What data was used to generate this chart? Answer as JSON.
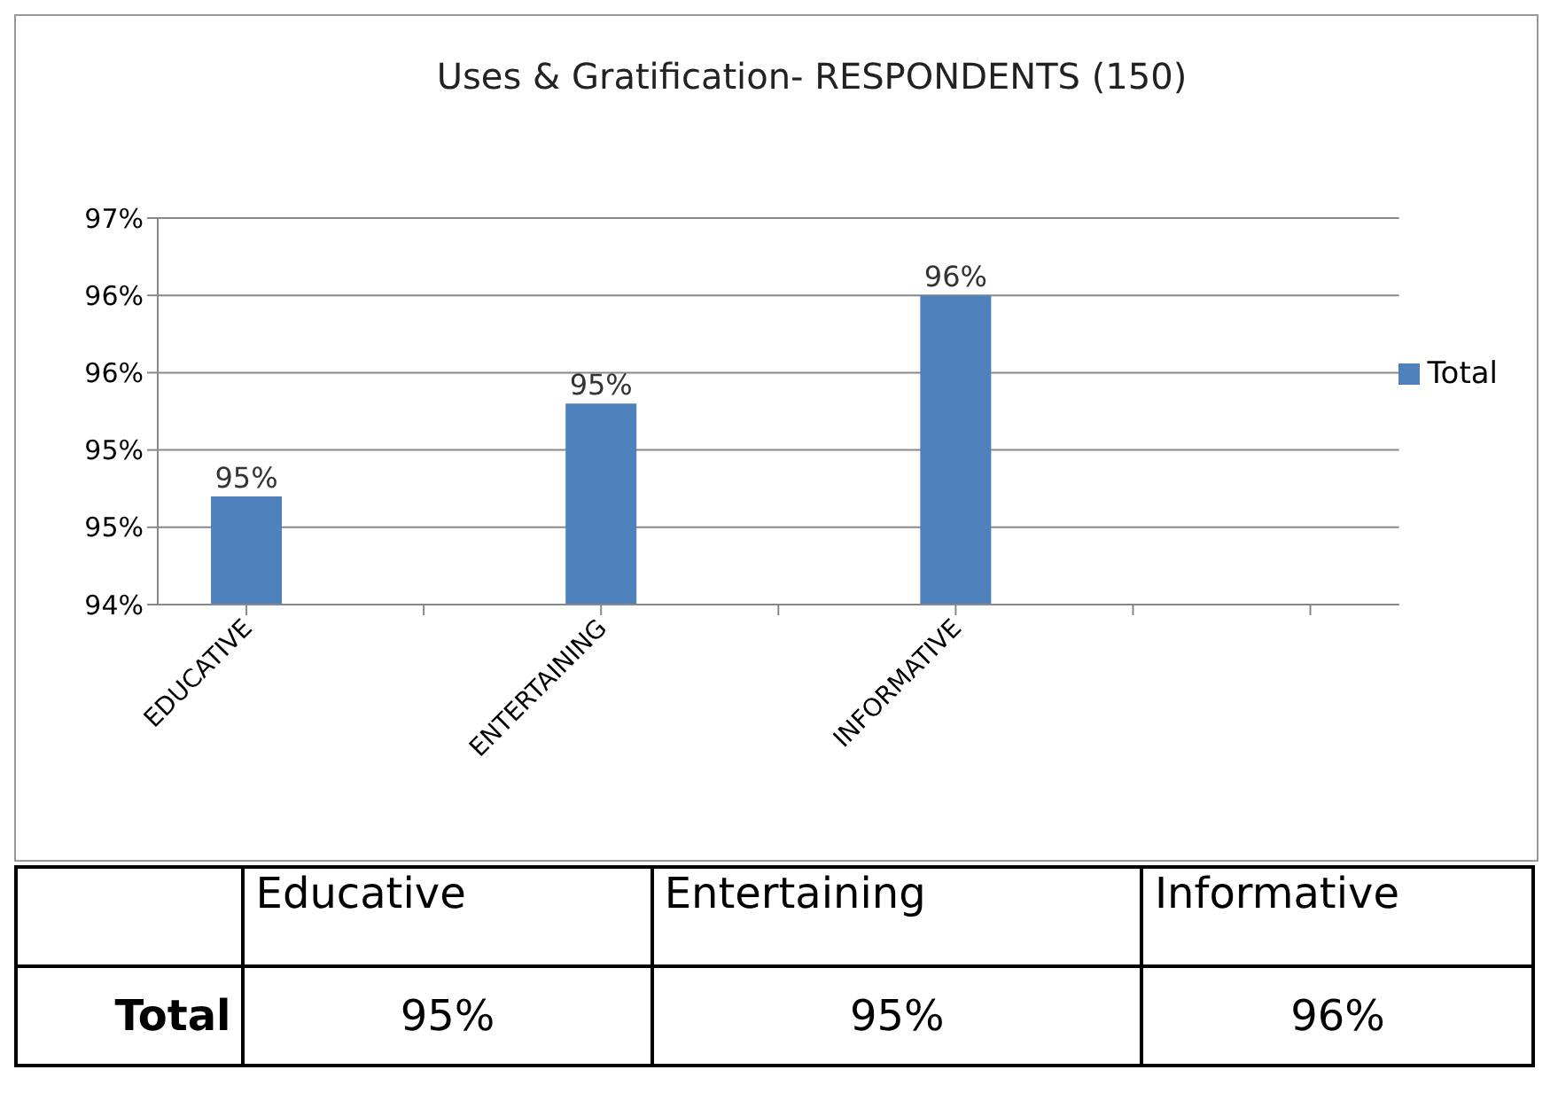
{
  "chart_data": {
    "type": "bar",
    "title": "Uses & Gratification- RESPONDENTS (150)",
    "categories": [
      "EDUCATIVE",
      null,
      "ENTERTAINING",
      null,
      "INFORMATIVE",
      null,
      null
    ],
    "series": [
      {
        "name": "Total",
        "color": "#4f81bd",
        "values": [
          94.7,
          null,
          95.3,
          null,
          96.0,
          null,
          null
        ],
        "value_labels": [
          "95%",
          null,
          "95%",
          null,
          "96%",
          null,
          null
        ]
      }
    ],
    "ylim": [
      94,
      96.5
    ],
    "yticks": [
      {
        "value": 94,
        "label": "94%"
      },
      {
        "value": 94.5,
        "label": "95%"
      },
      {
        "value": 95,
        "label": "95%"
      },
      {
        "value": 95.5,
        "label": "96%"
      },
      {
        "value": 96,
        "label": "96%"
      },
      {
        "value": 96.5,
        "label": "97%"
      }
    ],
    "grid": "y",
    "legend": "right",
    "annotations": [
      "Educative",
      "Entertaining",
      "Informative",
      "Total"
    ]
  }
}
